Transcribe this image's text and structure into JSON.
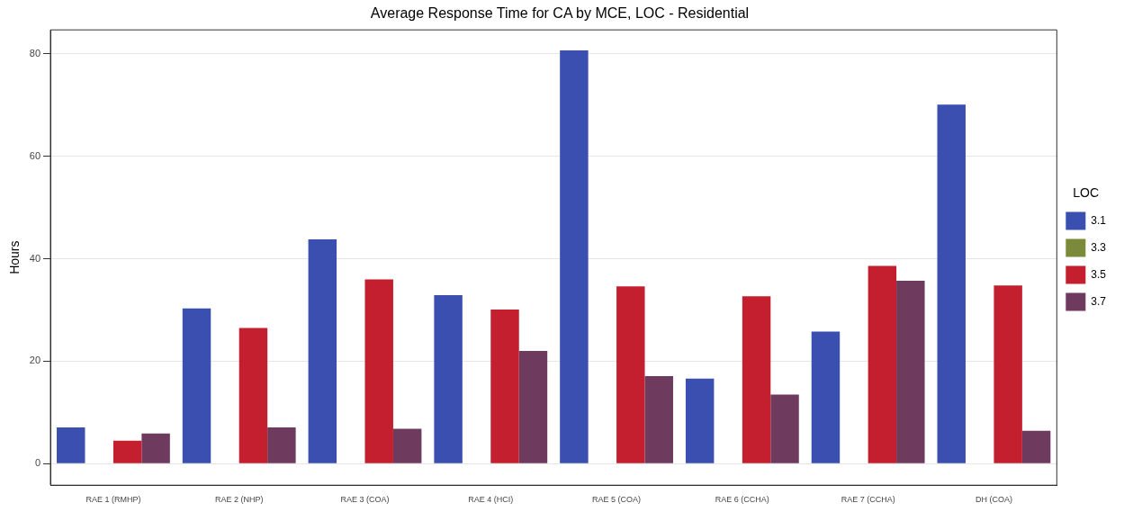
{
  "chart_data": {
    "type": "bar",
    "title": "Average Response Time for CA by MCE, LOC - Residential",
    "ylabel": "Hours",
    "legend_title": "LOC",
    "legend": "right",
    "grid": "y",
    "categories": [
      "RAE 1 (RMHP)",
      "RAE 2 (NHP)",
      "RAE 3 (COA)",
      "RAE 4 (HCI)",
      "RAE 5 (COA)",
      "RAE 6 (CCHA)",
      "RAE 7 (CCHA)",
      "DH (COA)"
    ],
    "ylim": [
      -4.2,
      84.7
    ],
    "yticks": [
      0,
      20,
      40,
      60,
      80
    ],
    "series": [
      {
        "name": "3.1",
        "color": "#3a4faf",
        "values": [
          7.1,
          30.3,
          43.8,
          32.9,
          80.7,
          16.6,
          25.8,
          70.1
        ]
      },
      {
        "name": "3.3",
        "color": "#7a8a3a",
        "values": [
          null,
          null,
          null,
          null,
          null,
          null,
          null,
          null
        ]
      },
      {
        "name": "3.5",
        "color": "#c41f2f",
        "values": [
          4.5,
          26.5,
          36,
          30.1,
          34.6,
          32.7,
          38.6,
          34.8
        ]
      },
      {
        "name": "3.7",
        "color": "#6e3a5e",
        "values": [
          5.9,
          7.1,
          6.8,
          22,
          17.1,
          13.5,
          35.7,
          6.4
        ]
      }
    ]
  }
}
